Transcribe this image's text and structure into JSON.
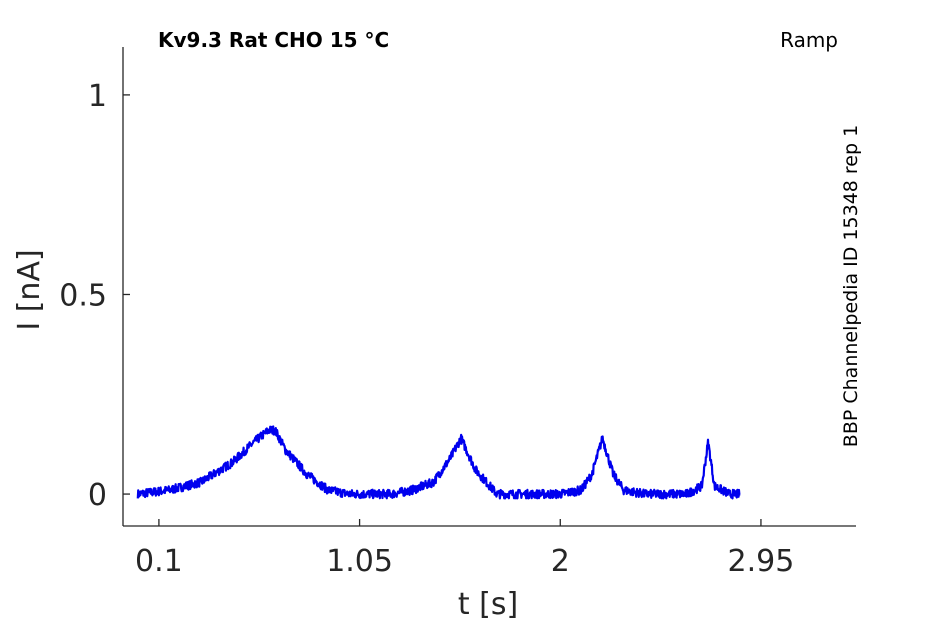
{
  "header": {
    "title": "Kv9.3  Rat  CHO  15 °C",
    "protocol": "Ramp"
  },
  "source_label": "BBP Channelpedia ID 15348 rep 1",
  "colors": {
    "trace": "#0000ee",
    "axis": "#262626"
  },
  "chart_data": {
    "type": "line",
    "xlabel": "t [s]",
    "ylabel": "I [nA]",
    "xlim": [
      -0.07,
      3.4
    ],
    "ylim": [
      -0.08,
      1.12
    ],
    "x_ticks": [
      0.1,
      1.05,
      2,
      2.95
    ],
    "x_tick_labels": [
      "0.1",
      "1.05",
      "2",
      "2.95"
    ],
    "y_ticks": [
      0,
      0.5,
      1
    ],
    "y_tick_labels": [
      "0",
      "0.5",
      "1"
    ],
    "grid": false,
    "series": [
      {
        "x": [
          0.0,
          0.15,
          0.3,
          0.45,
          0.55,
          0.62,
          0.65,
          0.7,
          0.8,
          0.9,
          1.0,
          1.1,
          1.2,
          1.3,
          1.4,
          1.48,
          1.53,
          1.6,
          1.7,
          1.8,
          1.9,
          2.0,
          2.1,
          2.15,
          2.2,
          2.25,
          2.3,
          2.4,
          2.5,
          2.6,
          2.67,
          2.7,
          2.73,
          2.8,
          2.85
        ],
        "y": [
          0.0,
          0.01,
          0.03,
          0.08,
          0.13,
          0.16,
          0.16,
          0.11,
          0.05,
          0.01,
          0.0,
          0.0,
          0.0,
          0.01,
          0.03,
          0.09,
          0.14,
          0.06,
          0.0,
          0.0,
          0.0,
          0.0,
          0.01,
          0.05,
          0.14,
          0.05,
          0.01,
          0.0,
          0.0,
          0.0,
          0.02,
          0.13,
          0.02,
          0.0,
          0.0
        ]
      }
    ]
  }
}
